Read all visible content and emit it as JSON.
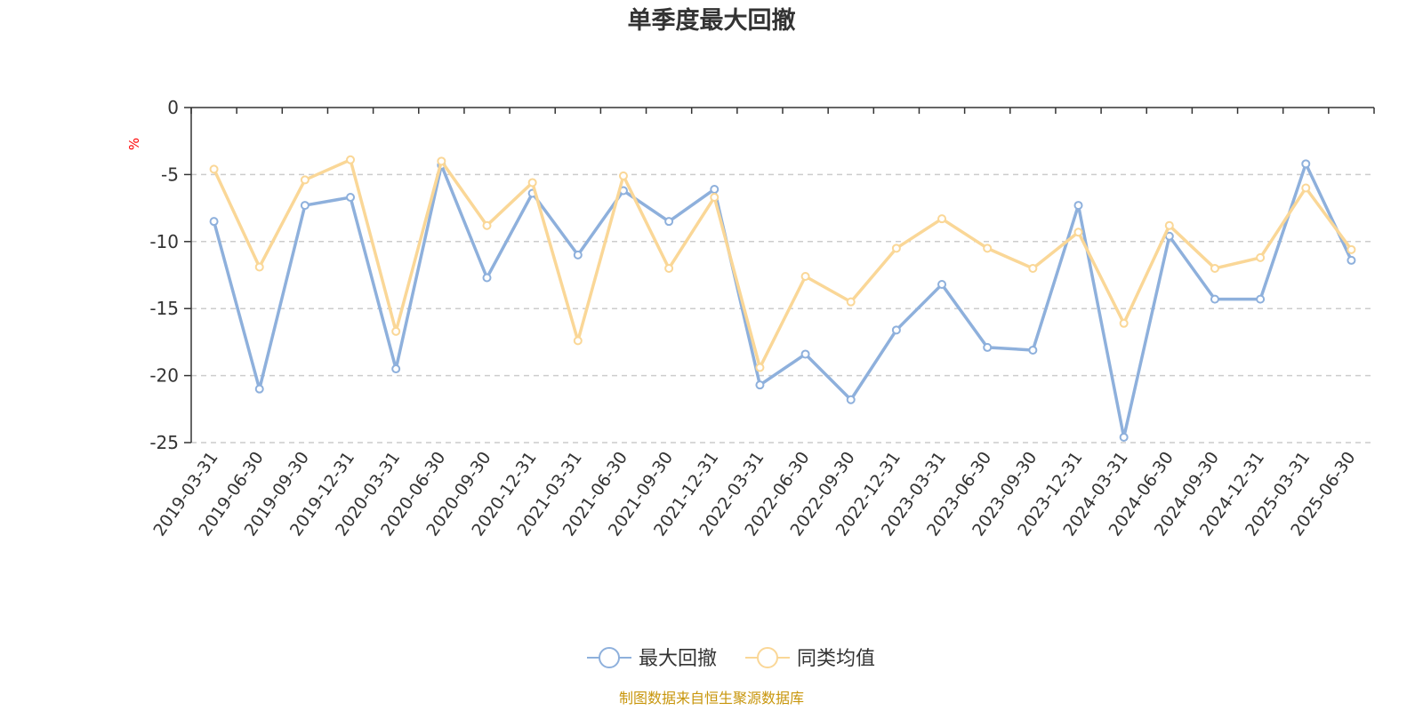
{
  "chart_data": {
    "type": "line",
    "title": "单季度最大回撤",
    "ylabel": "%",
    "ylim": [
      -25,
      0
    ],
    "yticks": [
      0,
      -5,
      -10,
      -15,
      -20,
      -25
    ],
    "grid": "horizontal-dashed",
    "legend_position": "bottom-center",
    "categories": [
      "2019-03-31",
      "2019-06-30",
      "2019-09-30",
      "2019-12-31",
      "2020-03-31",
      "2020-06-30",
      "2020-09-30",
      "2020-12-31",
      "2021-03-31",
      "2021-06-30",
      "2021-09-30",
      "2021-12-31",
      "2022-03-31",
      "2022-06-30",
      "2022-09-30",
      "2022-12-31",
      "2023-03-31",
      "2023-06-30",
      "2023-09-30",
      "2023-12-31",
      "2024-03-31",
      "2024-06-30",
      "2024-09-30",
      "2024-12-31",
      "2025-03-31",
      "2025-06-30"
    ],
    "series": [
      {
        "name": "最大回撤",
        "color": "#8eb0dc",
        "values": [
          -8.5,
          -21.0,
          -7.3,
          -6.7,
          -19.5,
          -4.3,
          -12.7,
          -6.4,
          -11.0,
          -6.2,
          -8.5,
          -6.1,
          -20.7,
          -18.4,
          -21.8,
          -16.6,
          -13.2,
          -17.9,
          -18.1,
          -7.3,
          -24.6,
          -9.6,
          -14.3,
          -14.3,
          -4.2,
          -11.4
        ]
      },
      {
        "name": "同类均值",
        "color": "#fad797",
        "values": [
          -4.6,
          -11.9,
          -5.4,
          -3.9,
          -16.7,
          -4.0,
          -8.8,
          -5.6,
          -17.4,
          -5.1,
          -12.0,
          -6.7,
          -19.4,
          -12.6,
          -14.5,
          -10.5,
          -8.3,
          -10.5,
          -12.0,
          -9.3,
          -16.1,
          -8.8,
          -12.0,
          -11.2,
          -6.0,
          -10.6
        ]
      }
    ]
  },
  "footer": {
    "source": "制图数据来自恒生聚源数据库"
  }
}
